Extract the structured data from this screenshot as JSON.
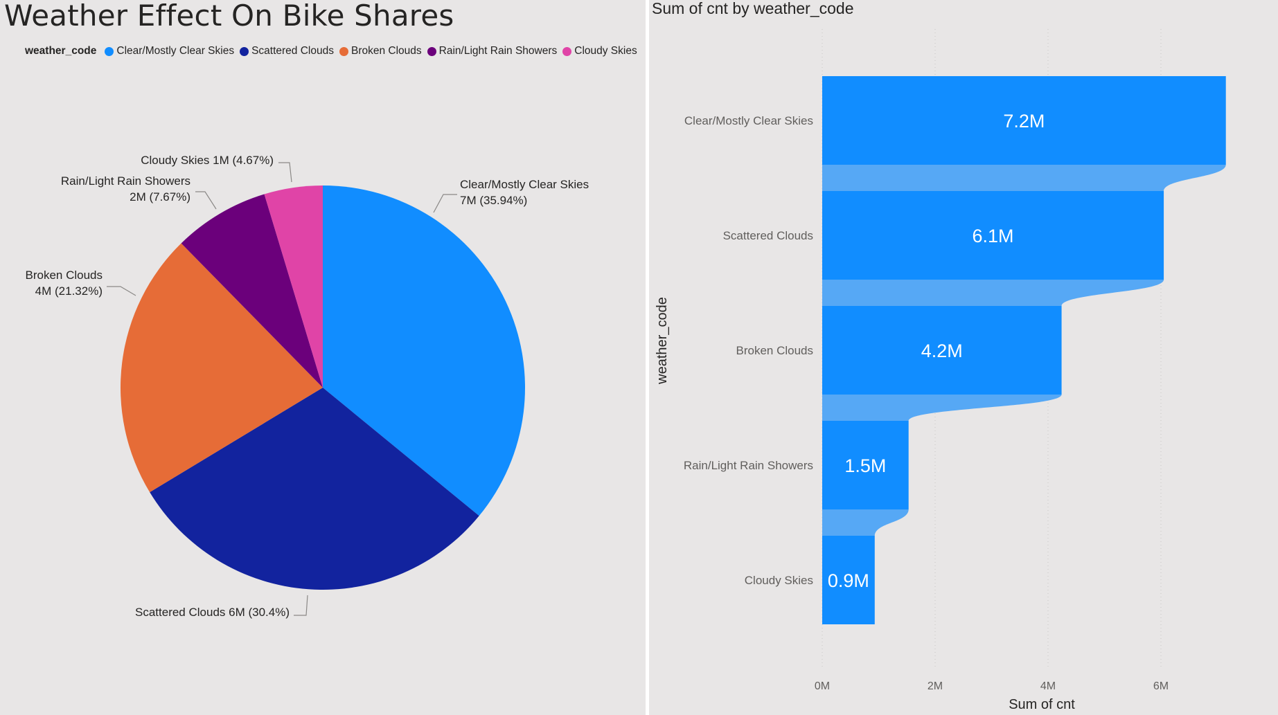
{
  "page": {
    "title": "Weather Effect On Bike Shares"
  },
  "legend": {
    "title": "weather_code",
    "items": [
      {
        "label": "Clear/Mostly Clear Skies",
        "color": "#118dff"
      },
      {
        "label": "Scattered Clouds",
        "color": "#12239e"
      },
      {
        "label": "Broken Clouds",
        "color": "#e66c37"
      },
      {
        "label": "Rain/Light Rain Showers",
        "color": "#6b007b"
      },
      {
        "label": "Cloudy Skies",
        "color": "#e044a7"
      }
    ]
  },
  "bar_chart": {
    "title": "Sum of cnt by weather_code"
  },
  "chart_data": [
    {
      "type": "pie",
      "categories": [
        "Clear/Mostly Clear Skies",
        "Scattered Clouds",
        "Broken Clouds",
        "Rain/Light Rain Showers",
        "Cloudy Skies"
      ],
      "percents": [
        35.94,
        30.4,
        21.32,
        7.67,
        4.67
      ],
      "data_labels": [
        [
          "Clear/Mostly Clear Skies",
          "7M (35.94%)"
        ],
        [
          "Scattered Clouds 6M (30.4%)"
        ],
        [
          "Broken Clouds",
          "4M (21.32%)"
        ],
        [
          "Rain/Light Rain Showers",
          "2M (7.67%)"
        ],
        [
          "Cloudy Skies 1M (4.67%)"
        ]
      ],
      "colors": [
        "#118dff",
        "#12239e",
        "#e66c37",
        "#6b007b",
        "#e044a7"
      ],
      "legend_title": "weather_code",
      "legend_position": "top-left"
    },
    {
      "type": "bar",
      "orientation": "horizontal",
      "title": "Sum of cnt by weather_code",
      "xlabel": "Sum of cnt",
      "ylabel": "weather_code",
      "categories": [
        "Clear/Mostly Clear Skies",
        "Scattered Clouds",
        "Broken Clouds",
        "Rain/Light Rain Showers",
        "Cloudy Skies"
      ],
      "values": [
        7.15,
        6.05,
        4.24,
        1.53,
        0.93
      ],
      "unit": "M",
      "data_labels": [
        "7.2M",
        "6.1M",
        "4.2M",
        "1.5M",
        "0.9M"
      ],
      "xticks": [
        0,
        2,
        4,
        6
      ],
      "xtick_labels": [
        "0M",
        "2M",
        "4M",
        "6M"
      ],
      "xlim": [
        0,
        7.15
      ],
      "grid": "vertical-dotted",
      "color": "#118dff",
      "ribbon_color": "#56a8f5"
    }
  ]
}
